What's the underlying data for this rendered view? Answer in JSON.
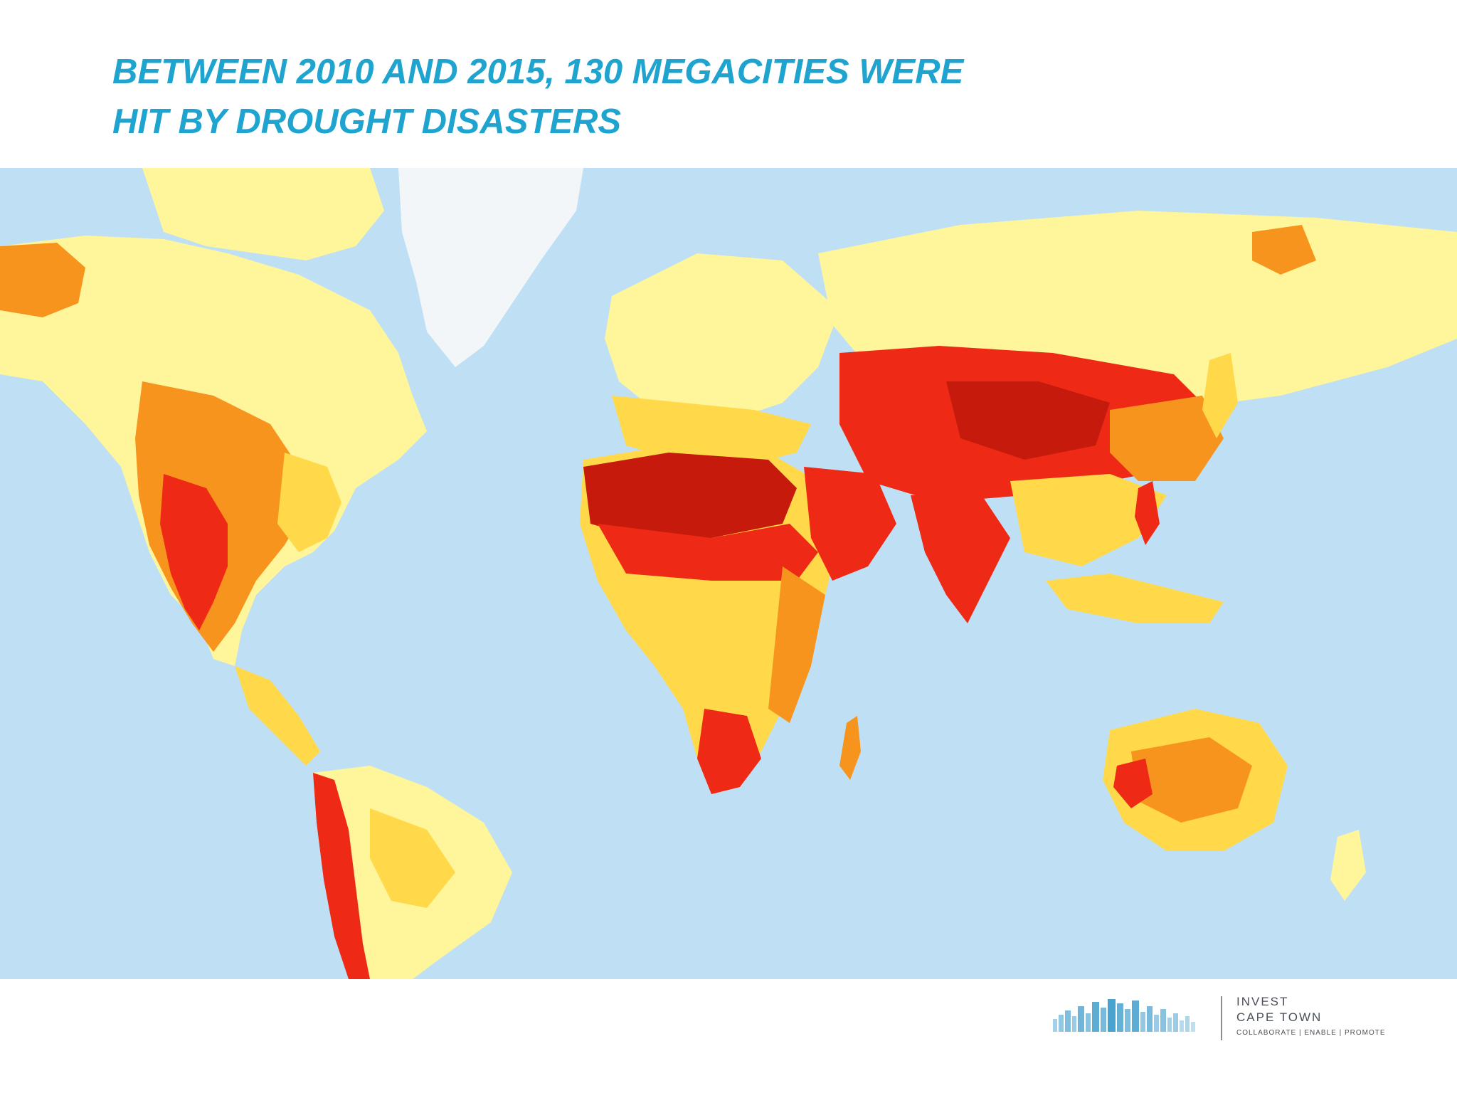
{
  "slide": {
    "title_line1": "BETWEEN 2010 AND 2015, 130 MEGACITIES WERE",
    "title_line2": "HIT BY DROUGHT DISASTERS"
  },
  "map": {
    "colors": {
      "ocean": "#bfe0f4",
      "ice": "#f2f6f9",
      "risk_low": "#fff59a",
      "risk_low_medium": "#ffd94a",
      "risk_medium_high": "#f7941d",
      "risk_high": "#ee2a16",
      "risk_extreme": "#c51a0c"
    }
  },
  "logo": {
    "line1": "INVEST",
    "line2": "CAPE TOWN",
    "tagline": "COLLABORATE | ENABLE | PROMOTE",
    "color": "#4aa3cf"
  }
}
